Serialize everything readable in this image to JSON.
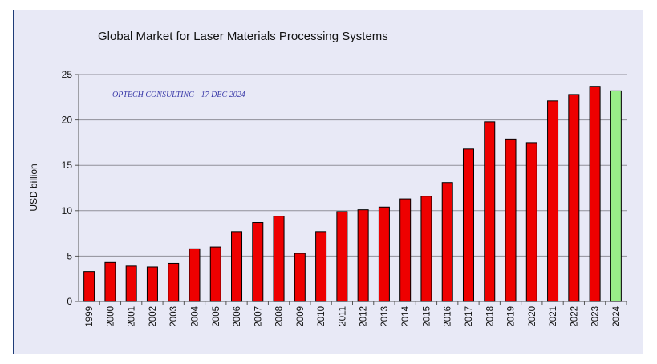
{
  "chart_data": {
    "type": "bar",
    "title": "Global Market for Laser Materials Processing Systems",
    "ylabel": "USD billion",
    "xlabel": "",
    "annotation": "OPTECH CONSULTING - 17 DEC 2024",
    "ylim": [
      0,
      25
    ],
    "yticks": [
      0,
      5,
      10,
      15,
      20,
      25
    ],
    "grid": true,
    "categories": [
      "1999",
      "2000",
      "2001",
      "2002",
      "2003",
      "2004",
      "2005",
      "2006",
      "2007",
      "2008",
      "2009",
      "2010",
      "2011",
      "2012",
      "2013",
      "2014",
      "2015",
      "2016",
      "2017",
      "2018",
      "2019",
      "2020",
      "2021",
      "2022",
      "2023",
      "2024"
    ],
    "values": [
      3.3,
      4.3,
      3.9,
      3.8,
      4.2,
      5.8,
      6.0,
      7.7,
      8.7,
      9.4,
      5.3,
      7.7,
      9.9,
      10.1,
      10.4,
      11.3,
      11.6,
      13.1,
      16.8,
      19.8,
      17.9,
      17.5,
      22.1,
      22.8,
      23.7,
      23.2
    ],
    "colors": {
      "bar": "#ee0000",
      "bar_highlight": "#99ee88",
      "highlight_category": "2024",
      "grid": "#8f8f99",
      "background": "#e8e9f6",
      "border": "#1f3c78"
    }
  }
}
